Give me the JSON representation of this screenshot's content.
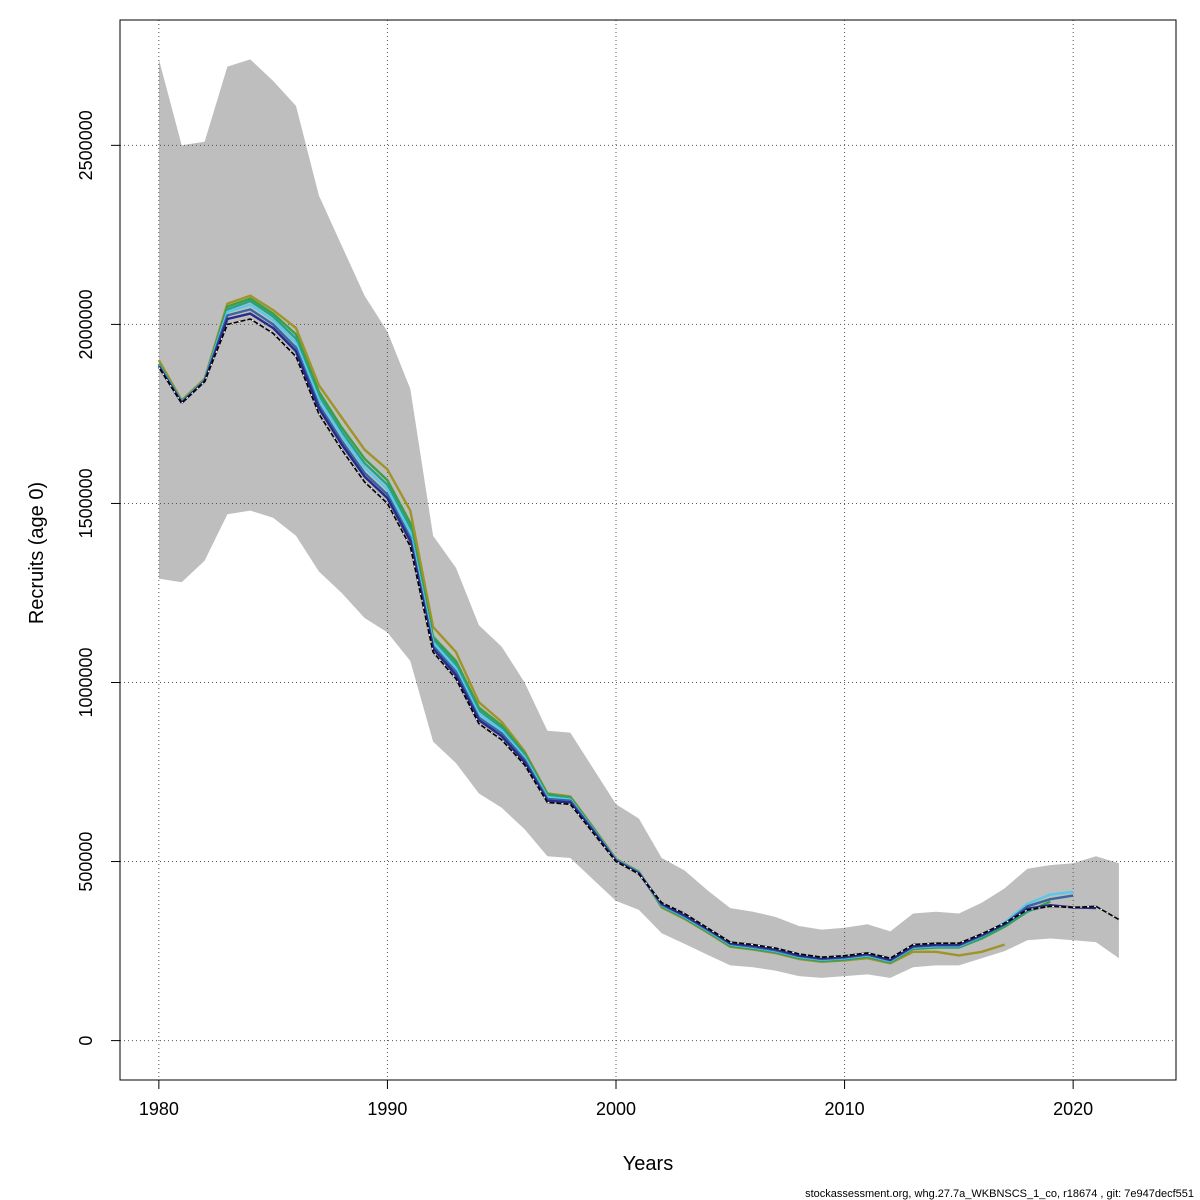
{
  "chart_data": {
    "type": "line",
    "title": "",
    "xlabel": "Years",
    "ylabel": "Recruits (age 0)",
    "xlim": [
      1978.3,
      2024.5
    ],
    "ylim": [
      -110000,
      2850000
    ],
    "x_ticks": [
      1980,
      1990,
      2000,
      2010,
      2020
    ],
    "x_tick_labels": [
      "1980",
      "1990",
      "2000",
      "2010",
      "2020"
    ],
    "y_ticks": [
      0,
      500000,
      1000000,
      1500000,
      2000000,
      2500000
    ],
    "y_tick_labels": [
      "0",
      "500000",
      "1000000",
      "1500000",
      "2000000",
      "2500000"
    ],
    "grid": true,
    "footer": "stockassessment.org, whg.27.7a_WKBNSCS_1_co, r18674 , git: 7e947decf551",
    "colors": {
      "band": "#bebebe",
      "base": "#000000",
      "grid": "#555555",
      "retro": [
        "#2a2a8a",
        "#3a66a0",
        "#5bc8e8",
        "#2aa08a",
        "#3aa040",
        "#a09428"
      ]
    },
    "confidence_band": {
      "x": [
        1980,
        1981,
        1982,
        1983,
        1984,
        1985,
        1986,
        1987,
        1988,
        1989,
        1990,
        1991,
        1992,
        1993,
        1994,
        1995,
        1996,
        1997,
        1998,
        1999,
        2000,
        2001,
        2002,
        2003,
        2004,
        2005,
        2006,
        2007,
        2008,
        2009,
        2010,
        2011,
        2012,
        2013,
        2014,
        2015,
        2016,
        2017,
        2018,
        2019,
        2020,
        2021,
        2022
      ],
      "upper": [
        2740000,
        2500000,
        2510000,
        2720000,
        2740000,
        2680000,
        2610000,
        2360000,
        2220000,
        2080000,
        1980000,
        1820000,
        1410000,
        1320000,
        1160000,
        1100000,
        1000000,
        865000,
        860000,
        760000,
        660000,
        620000,
        510000,
        475000,
        420000,
        370000,
        360000,
        345000,
        320000,
        310000,
        315000,
        325000,
        305000,
        355000,
        360000,
        355000,
        385000,
        425000,
        480000,
        490000,
        495000,
        515000,
        495000
      ],
      "lower": [
        1290000,
        1280000,
        1340000,
        1470000,
        1480000,
        1460000,
        1410000,
        1310000,
        1250000,
        1180000,
        1140000,
        1060000,
        835000,
        775000,
        690000,
        650000,
        590000,
        515000,
        510000,
        450000,
        390000,
        365000,
        300000,
        270000,
        240000,
        210000,
        205000,
        195000,
        180000,
        175000,
        180000,
        185000,
        175000,
        205000,
        210000,
        210000,
        230000,
        250000,
        280000,
        285000,
        280000,
        275000,
        230000
      ]
    },
    "series": [
      {
        "x": [
          1980,
          1981,
          1982,
          1983,
          1984,
          1985,
          1986,
          1987,
          1988,
          1989,
          1990,
          1991,
          1992,
          1993,
          1994,
          1995,
          1996,
          1997,
          1998,
          1999,
          2000,
          2001,
          2002,
          2003,
          2004,
          2005,
          2006,
          2007,
          2008,
          2009,
          2010,
          2011,
          2012,
          2013,
          2014,
          2015,
          2016,
          2017,
          2018,
          2019,
          2020,
          2021,
          2022
        ],
        "values": [
          1880000,
          1780000,
          1840000,
          2000000,
          2015000,
          1975000,
          1910000,
          1750000,
          1650000,
          1560000,
          1500000,
          1380000,
          1085000,
          1010000,
          885000,
          840000,
          770000,
          665000,
          660000,
          580000,
          500000,
          465000,
          385000,
          355000,
          315000,
          275000,
          268000,
          258000,
          242000,
          233000,
          237000,
          245000,
          230000,
          268000,
          272000,
          272000,
          298000,
          328000,
          365000,
          375000,
          372000,
          375000,
          338000
        ],
        "dashed": true
      },
      {
        "x": [
          1980,
          1981,
          1982,
          1983,
          1984,
          1985,
          1986,
          1987,
          1988,
          1989,
          1990,
          1991,
          1992,
          1993,
          1994,
          1995,
          1996,
          1997,
          1998,
          1999,
          2000,
          2001,
          2002,
          2003,
          2004,
          2005,
          2006,
          2007,
          2008,
          2009,
          2010,
          2011,
          2012,
          2013,
          2014,
          2015,
          2016,
          2017,
          2018,
          2019,
          2020,
          2021
        ],
        "values": [
          1882000,
          1781000,
          1841000,
          2015000,
          2030000,
          1990000,
          1925000,
          1765000,
          1665000,
          1575000,
          1515000,
          1395000,
          1095000,
          1020000,
          895000,
          850000,
          778000,
          670000,
          665000,
          585000,
          502000,
          467000,
          382000,
          350000,
          312000,
          272000,
          265000,
          255000,
          238000,
          230000,
          234000,
          242000,
          226000,
          264000,
          268000,
          268000,
          295000,
          325000,
          368000,
          378000,
          372000,
          370000
        ]
      },
      {
        "x": [
          1980,
          1981,
          1982,
          1983,
          1984,
          1985,
          1986,
          1987,
          1988,
          1989,
          1990,
          1991,
          1992,
          1993,
          1994,
          1995,
          1996,
          1997,
          1998,
          1999,
          2000,
          2001,
          2002,
          2003,
          2004,
          2005,
          2006,
          2007,
          2008,
          2009,
          2010,
          2011,
          2012,
          2013,
          2014,
          2015,
          2016,
          2017,
          2018,
          2019,
          2020
        ],
        "values": [
          1884000,
          1782000,
          1842000,
          2025000,
          2042000,
          2000000,
          1935000,
          1775000,
          1675000,
          1585000,
          1525000,
          1405000,
          1102000,
          1030000,
          902000,
          858000,
          785000,
          675000,
          670000,
          588000,
          503000,
          468000,
          380000,
          348000,
          310000,
          270000,
          262000,
          252000,
          236000,
          228000,
          232000,
          240000,
          224000,
          262000,
          266000,
          266000,
          293000,
          326000,
          375000,
          395000,
          405000
        ]
      },
      {
        "x": [
          1980,
          1981,
          1982,
          1983,
          1984,
          1985,
          1986,
          1987,
          1988,
          1989,
          1990,
          1991,
          1992,
          1993,
          1994,
          1995,
          1996,
          1997,
          1998,
          1999,
          2000,
          2001,
          2002,
          2003,
          2004,
          2005,
          2006,
          2007,
          2008,
          2009,
          2010,
          2011,
          2012,
          2013,
          2014,
          2015,
          2016,
          2017,
          2018,
          2019,
          2020
        ],
        "values": [
          1886000,
          1783000,
          1843000,
          2035000,
          2055000,
          2012000,
          1948000,
          1790000,
          1690000,
          1600000,
          1540000,
          1420000,
          1112000,
          1040000,
          912000,
          866000,
          792000,
          680000,
          673000,
          590000,
          504000,
          469000,
          378000,
          346000,
          308000,
          268000,
          260000,
          250000,
          234000,
          226000,
          230000,
          238000,
          222000,
          260000,
          264000,
          264000,
          292000,
          330000,
          382000,
          408000,
          415000
        ]
      },
      {
        "x": [
          1980,
          1981,
          1982,
          1983,
          1984,
          1985,
          1986,
          1987,
          1988,
          1989,
          1990,
          1991,
          1992,
          1993,
          1994,
          1995,
          1996,
          1997,
          1998,
          1999,
          2000,
          2001,
          2002,
          2003,
          2004,
          2005,
          2006,
          2007,
          2008,
          2009,
          2010,
          2011,
          2012,
          2013,
          2014,
          2015,
          2016,
          2017,
          2018,
          2019
        ],
        "values": [
          1888000,
          1784000,
          1844000,
          2042000,
          2065000,
          2022000,
          1960000,
          1800000,
          1700000,
          1612000,
          1552000,
          1432000,
          1120000,
          1050000,
          922000,
          874000,
          798000,
          684000,
          676000,
          592000,
          505000,
          470000,
          376000,
          344000,
          306000,
          266000,
          258000,
          248000,
          232000,
          224000,
          228000,
          236000,
          220000,
          258000,
          262000,
          262000,
          288000,
          322000,
          362000,
          378000
        ]
      },
      {
        "x": [
          1980,
          1981,
          1982,
          1983,
          1984,
          1985,
          1986,
          1987,
          1988,
          1989,
          1990,
          1991,
          1992,
          1993,
          1994,
          1995,
          1996,
          1997,
          1998,
          1999,
          2000,
          2001,
          2002,
          2003,
          2004,
          2005,
          2006,
          2007,
          2008,
          2009,
          2010,
          2011,
          2012,
          2013,
          2014,
          2015,
          2016,
          2017,
          2018,
          2019
        ],
        "values": [
          1890000,
          1785000,
          1845000,
          2050000,
          2072000,
          2030000,
          1972000,
          1812000,
          1712000,
          1625000,
          1565000,
          1445000,
          1128000,
          1060000,
          930000,
          880000,
          802000,
          688000,
          679000,
          594000,
          506000,
          471000,
          374000,
          342000,
          304000,
          264000,
          256000,
          246000,
          230000,
          222000,
          226000,
          234000,
          218000,
          256000,
          260000,
          260000,
          285000,
          318000,
          360000,
          388000
        ]
      },
      {
        "x": [
          1980,
          1981,
          1982,
          1983,
          1984,
          1985,
          1986,
          1987,
          1988,
          1989,
          1990,
          1991,
          1992,
          1993,
          1994,
          1995,
          1996,
          1997,
          1998,
          1999,
          2000,
          2001,
          2002,
          2003,
          2004,
          2005,
          2006,
          2007,
          2008,
          2009,
          2010,
          2011,
          2012,
          2013,
          2014,
          2015,
          2016,
          2017
        ],
        "values": [
          1900000,
          1788000,
          1848000,
          2058000,
          2080000,
          2040000,
          1990000,
          1830000,
          1740000,
          1650000,
          1595000,
          1480000,
          1155000,
          1085000,
          945000,
          890000,
          808000,
          690000,
          682000,
          596000,
          507000,
          472000,
          372000,
          340000,
          302000,
          262000,
          254000,
          244000,
          228000,
          220000,
          224000,
          230000,
          216000,
          248000,
          248000,
          238000,
          248000,
          268000
        ]
      }
    ]
  }
}
